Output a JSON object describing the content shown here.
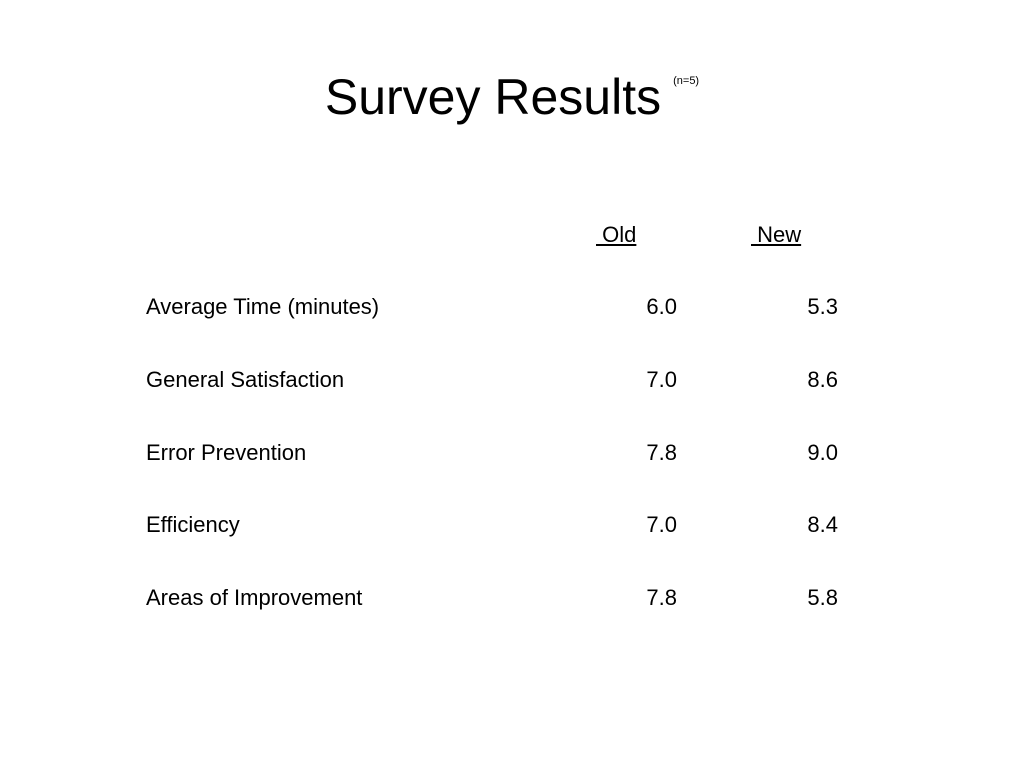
{
  "slide": {
    "title": "Survey Results",
    "subtitle": "(n=5)",
    "columns": {
      "old": " Old",
      "new": " New"
    },
    "rows": [
      {
        "label": "Average Time (minutes)",
        "old": "6.0",
        "new": "5.3"
      },
      {
        "label": "General Satisfaction",
        "old": "7.0",
        "new": "8.6"
      },
      {
        "label": "Error Prevention",
        "old": "7.8",
        "new": "9.0"
      },
      {
        "label": "Efficiency",
        "old": "7.0",
        "new": "8.4"
      },
      {
        "label": "Areas of Improvement",
        "old": "7.8",
        "new": "5.8"
      }
    ]
  }
}
